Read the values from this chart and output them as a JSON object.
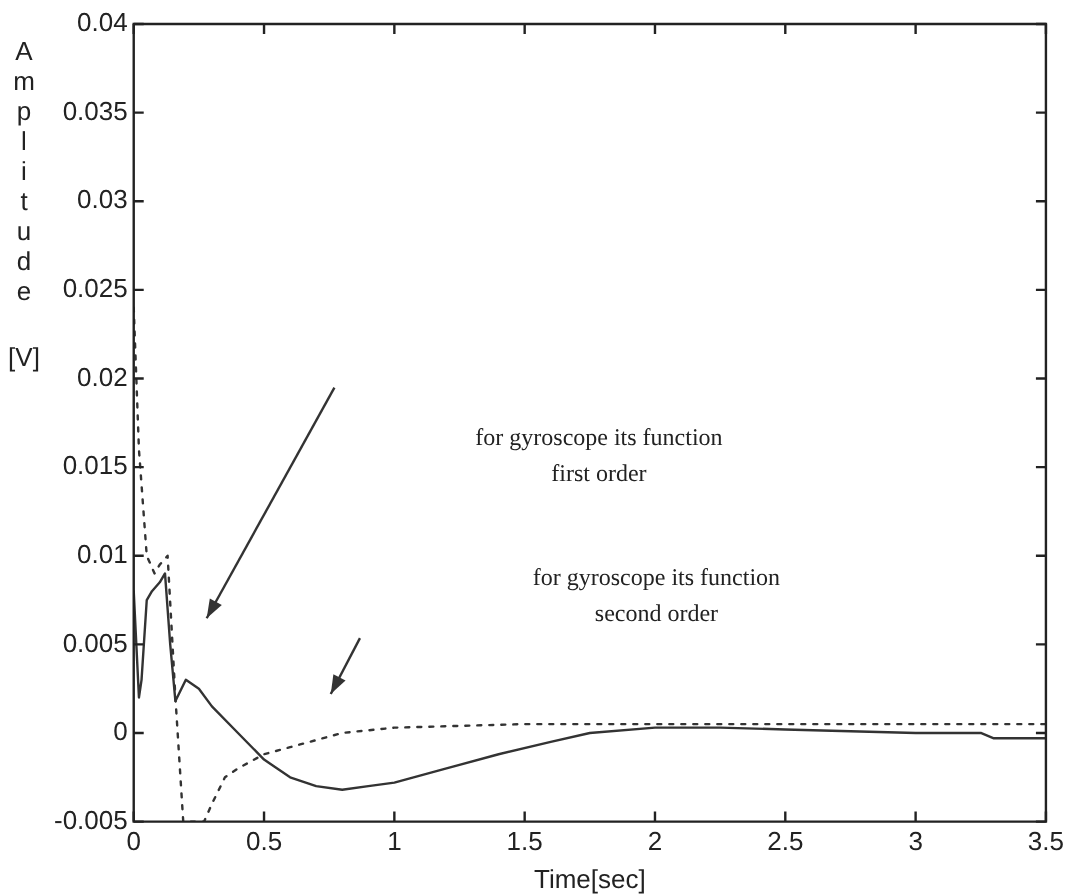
{
  "chart_data": {
    "type": "line",
    "xlabel": "Time[sec]",
    "ylabel": "Amplitude [V]",
    "xlim": [
      0,
      3.5
    ],
    "xticks": [
      0,
      0.5,
      1,
      1.5,
      2,
      2.5,
      3,
      3.5
    ],
    "ylim": [
      -0.005,
      0.04
    ],
    "yticks": [
      -0.005,
      0,
      0.005,
      0.01,
      0.015,
      0.02,
      0.025,
      0.03,
      0.035,
      0.04
    ],
    "grid": false,
    "legend": false,
    "marker": "none",
    "series": [
      {
        "color": "#333333",
        "line_style": "solid",
        "x": [
          0,
          0.02,
          0.03,
          0.05,
          0.07,
          0.1,
          0.12,
          0.14,
          0.16,
          0.2,
          0.25,
          0.3,
          0.4,
          0.5,
          0.6,
          0.7,
          0.8,
          0.9,
          1.0,
          1.2,
          1.4,
          1.6,
          1.75,
          2.0,
          2.25,
          2.5,
          2.75,
          3.0,
          3.25,
          3.3,
          3.5
        ],
        "values": [
          0.008,
          0.002,
          0.003,
          0.0075,
          0.008,
          0.0085,
          0.009,
          0.005,
          0.0018,
          0.003,
          0.0025,
          0.0015,
          0,
          -0.0015,
          -0.0025,
          -0.003,
          -0.0032,
          -0.003,
          -0.0028,
          -0.002,
          -0.0012,
          -0.0005,
          0,
          0.0003,
          0.0003,
          0.0002,
          0.0001,
          0,
          0,
          -0.0003,
          -0.0003
        ]
      },
      {
        "color": "#333333",
        "line_style": "dotted",
        "x": [
          0,
          0.02,
          0.05,
          0.08,
          0.1,
          0.13,
          0.16,
          0.19,
          0.22,
          0.27,
          0.3,
          0.35,
          0.4,
          0.5,
          0.6,
          0.7,
          0.8,
          1.0,
          1.5,
          2.0,
          2.5,
          3.0,
          3.5
        ],
        "values": [
          0.024,
          0.016,
          0.01,
          0.009,
          0.0095,
          0.01,
          0.002,
          -0.005,
          -0.005,
          -0.005,
          -0.004,
          -0.0025,
          -0.002,
          -0.0012,
          -0.0008,
          -0.0004,
          0,
          0.0003,
          0.0005,
          0.0005,
          0.0005,
          0.0005,
          0.0005
        ]
      }
    ],
    "annotations": [
      "for gyroscope its function\nfirst order",
      "for gyroscope its function\nsecond order"
    ]
  }
}
